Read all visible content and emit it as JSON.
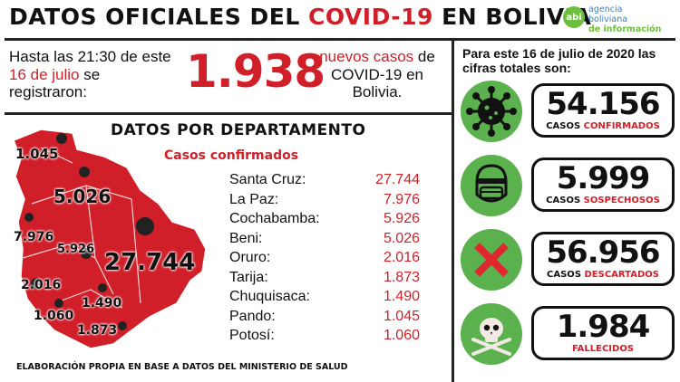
{
  "title": {
    "part1": "DATOS OFICIALES DEL ",
    "part2": "COVID-19",
    "part3": " EN BOLIVIA"
  },
  "logo": {
    "abbr": "abi",
    "line1": "agencia",
    "line2": "boliviana",
    "line3": "de información"
  },
  "intro": {
    "hasta_pre": "Hasta las 21:30 de este ",
    "hasta_date": "16 de julio",
    "hasta_post": " se registraron:",
    "new_cases": "1.938",
    "nuevos_red": "nuevos casos",
    "nuevos_rest": " de COVID-19 en Bolivia."
  },
  "departments": {
    "title": "DATOS POR DEPARTAMENTO",
    "subtitle": "Casos confirmados",
    "rows": [
      {
        "name": "Santa Cruz:",
        "value": "27.744"
      },
      {
        "name": "La Paz:",
        "value": "7.976"
      },
      {
        "name": "Cochabamba:",
        "value": "5.926"
      },
      {
        "name": "Beni:",
        "value": "5.026"
      },
      {
        "name": "Oruro:",
        "value": "2.016"
      },
      {
        "name": "Tarija:",
        "value": "1.873"
      },
      {
        "name": "Chuquisaca:",
        "value": "1.490"
      },
      {
        "name": "Pando:",
        "value": "1.045"
      },
      {
        "name": "Potosí:",
        "value": "1.060"
      }
    ]
  },
  "map_labels": {
    "pando": "1.045",
    "beni": "5.026",
    "la_paz": "7.976",
    "cochabamba": "5.926",
    "santa_cruz": "27.744",
    "oruro": "2.016",
    "chuquisaca": "1.490",
    "potosi": "1.060",
    "tarija": "1.873"
  },
  "footer": "ELABORACIÓN PROPIA EN BASE A DATOS DEL MINISTERIO DE SALUD",
  "totals": {
    "intro": "Para este 16 de julio de 2020 las cifras totales son:",
    "stats": [
      {
        "icon": "virus-icon",
        "number": "54.156",
        "label_pre": "CASOS ",
        "label_red": "CONFIRMADOS"
      },
      {
        "icon": "mask-face-icon",
        "number": "5.999",
        "label_pre": "CASOS ",
        "label_red": "SOSPECHOSOS"
      },
      {
        "icon": "red-x-icon",
        "number": "56.956",
        "label_pre": "CASOS ",
        "label_red": "DESCARTADOS"
      },
      {
        "icon": "skull-icon",
        "number": "1.984",
        "label_pre": "",
        "label_red": "FALLECIDOS"
      }
    ]
  },
  "colors": {
    "accent_red": "#d11f2a",
    "green": "#5ab14d",
    "map_red": "#d11f2a"
  }
}
